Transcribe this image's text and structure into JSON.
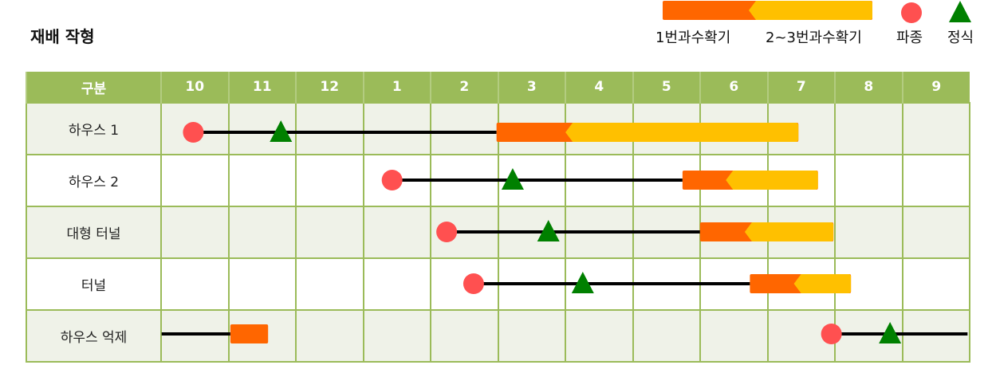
{
  "title": "재배 작형",
  "legend": {
    "first_harvest": "1번과수확기",
    "later_harvest": "2~3번과수확기",
    "sowing": "파종",
    "planting": "정식"
  },
  "colors": {
    "header": "#9bbb59",
    "first_harvest": "#ff6600",
    "later_harvest": "#ffc000",
    "sowing": "#ff5050",
    "planting": "#008000",
    "line": "#000000"
  },
  "header": {
    "label": "구분",
    "months": [
      "10",
      "11",
      "12",
      "1",
      "2",
      "3",
      "4",
      "5",
      "6",
      "7",
      "8",
      "9"
    ]
  },
  "rows": [
    {
      "label": "하우스 1",
      "segments": [
        {
          "sow": 0.49,
          "plant": 1.79,
          "harvest1_start": 4.99,
          "harvest2_start": 6.12,
          "end": 9.47
        }
      ]
    },
    {
      "label": "하우스 2",
      "segments": [
        {
          "sow": 3.44,
          "plant": 5.23,
          "harvest1_start": 7.75,
          "harvest2_start": 8.5,
          "end": 9.76
        }
      ]
    },
    {
      "label": "대형 터널",
      "segments": [
        {
          "sow": 4.25,
          "plant": 5.76,
          "harvest1_start": 8.01,
          "harvest2_start": 8.78,
          "end": 9.99
        }
      ]
    },
    {
      "label": "터널",
      "segments": [
        {
          "sow": 4.65,
          "plant": 6.27,
          "harvest1_start": 8.75,
          "harvest2_start": 9.51,
          "end": 10.25
        }
      ]
    },
    {
      "label": "하우스 억제",
      "segments": [
        {
          "line_start": 0.02,
          "harvest1_start": 1.04,
          "end": 1.6
        },
        {
          "sow": 9.96,
          "plant": 10.83,
          "line_end": 11.98
        }
      ]
    }
  ]
}
